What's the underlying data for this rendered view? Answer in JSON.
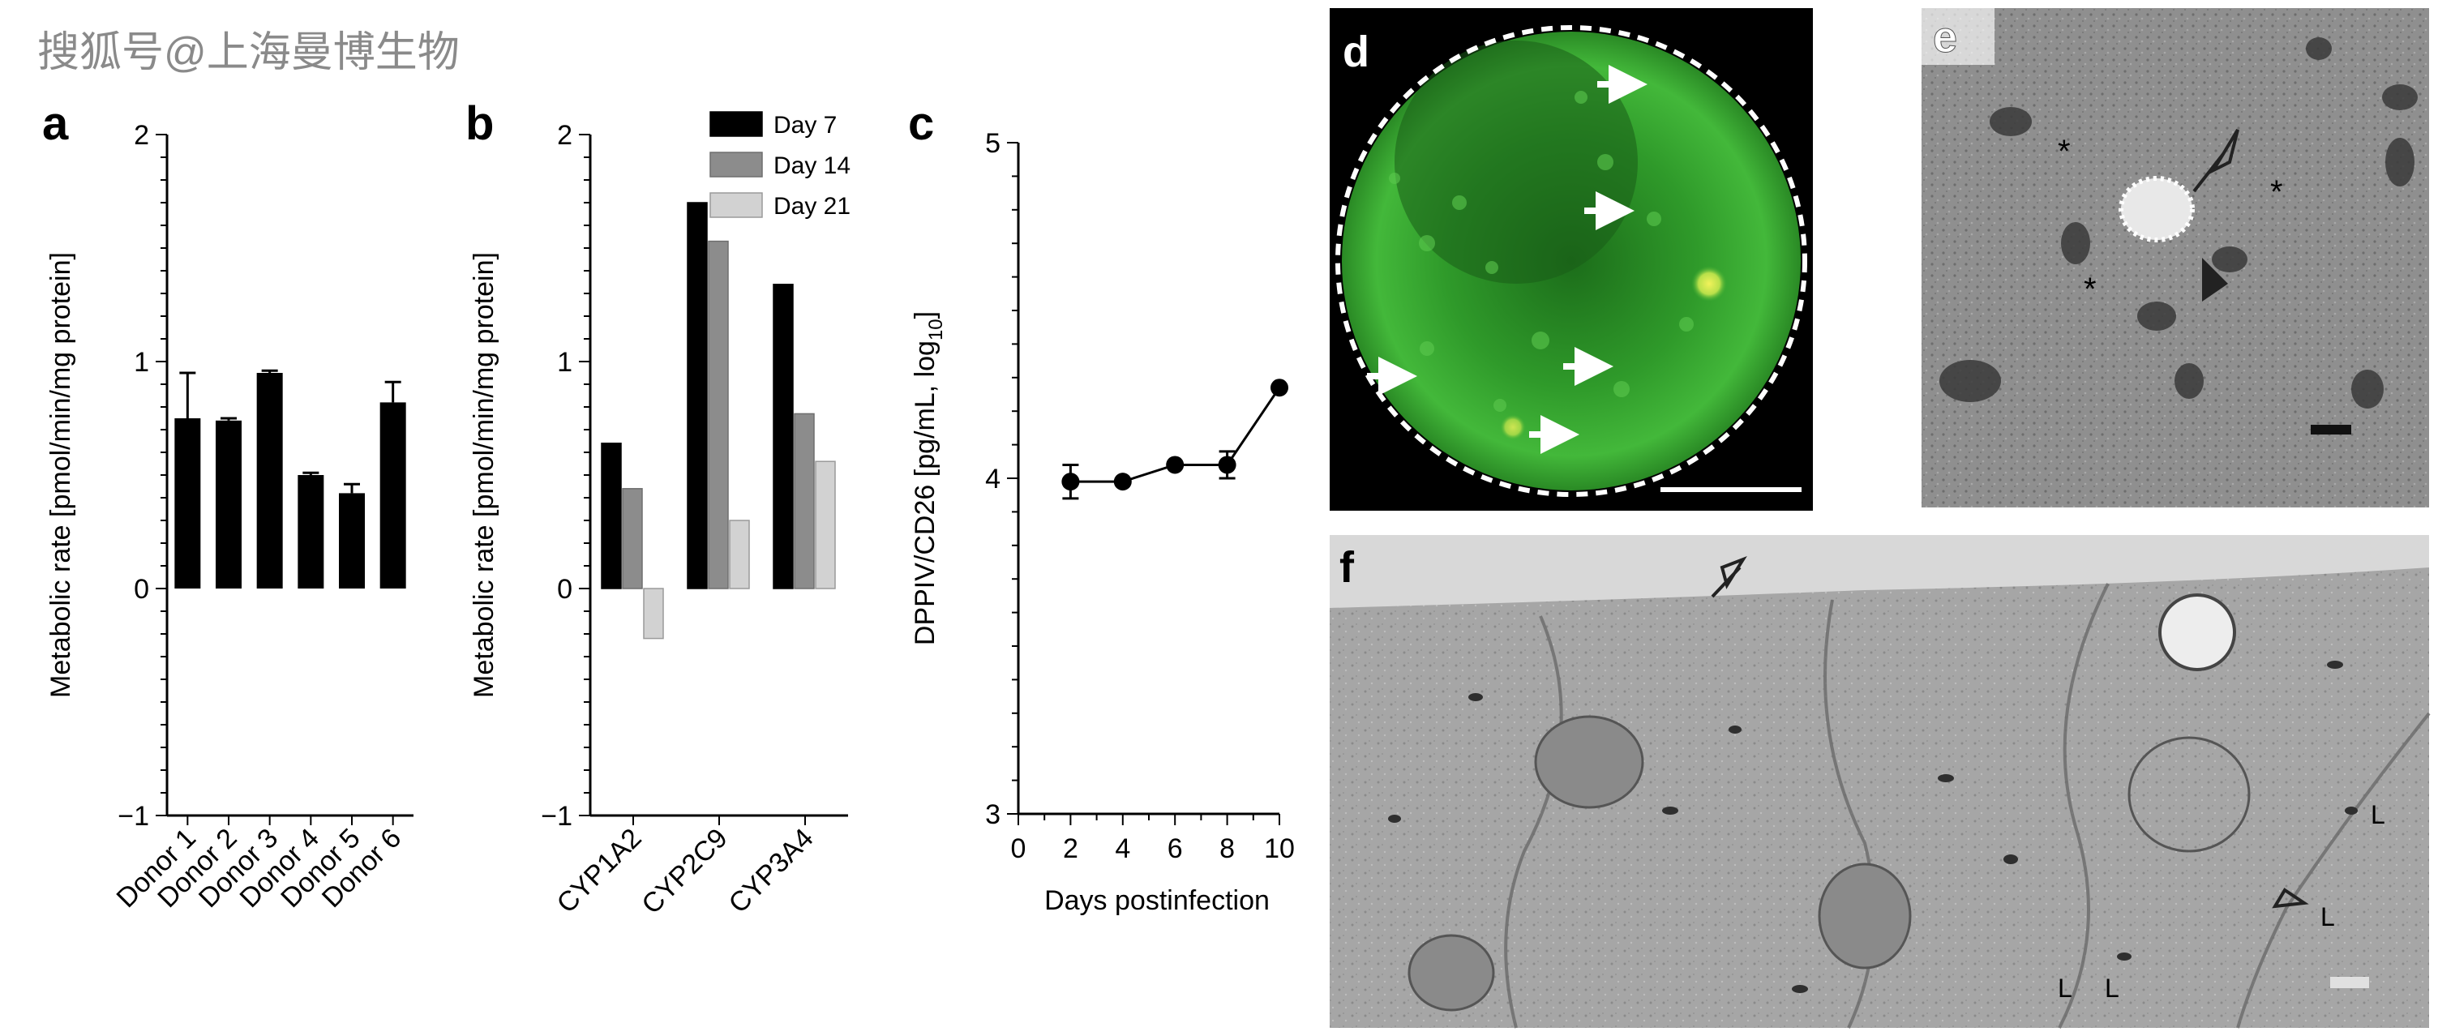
{
  "watermark": "搜狐号@上海曼博生物",
  "colors": {
    "day7": "#000000",
    "day14": "#8c8c8c",
    "day21": "#d2d2d2",
    "fluor_green": "#3fae35"
  },
  "panels": {
    "a": {
      "letter": "a"
    },
    "b": {
      "letter": "b"
    },
    "c": {
      "letter": "c"
    },
    "d": {
      "letter": "d"
    },
    "e": {
      "letter": "e"
    },
    "f": {
      "letter": "f"
    }
  },
  "micrographs": {
    "e_labels": [
      "*",
      "*",
      "*"
    ],
    "f_labels": [
      "L",
      "L",
      "L",
      "L"
    ]
  },
  "chart_data": [
    {
      "panel": "a",
      "type": "bar",
      "ylabel": "Metabolic rate [pmol/min/mg protein]",
      "ylim": [
        -1,
        2
      ],
      "yticks": [
        -1,
        0,
        1,
        2
      ],
      "categories": [
        "Donor 1",
        "Donor 2",
        "Donor 3",
        "Donor 4",
        "Donor 5",
        "Donor 6"
      ],
      "values": [
        0.75,
        0.74,
        0.95,
        0.5,
        0.42,
        0.82
      ],
      "errors": [
        0.2,
        0.01,
        0.01,
        0.01,
        0.04,
        0.09
      ]
    },
    {
      "panel": "b",
      "type": "bar",
      "ylabel": "Metabolic rate [pmol/min/mg protein]",
      "ylim": [
        -1,
        2
      ],
      "yticks": [
        -1,
        0,
        1,
        2
      ],
      "categories": [
        "CYP1A2",
        "CYP2C9",
        "CYP3A4"
      ],
      "series": [
        {
          "name": "Day 7",
          "values": [
            0.64,
            1.7,
            1.34
          ]
        },
        {
          "name": "Day 14",
          "values": [
            0.44,
            1.53,
            0.77
          ]
        },
        {
          "name": "Day 21",
          "values": [
            -0.22,
            0.3,
            0.56
          ]
        }
      ],
      "legend": "top-right"
    },
    {
      "panel": "c",
      "type": "line",
      "xlabel": "Days postinfection",
      "ylabel_main": "DPPIV/CD26 [pg/mL, log",
      "ylabel_sub": "10",
      "ylabel_end": "]",
      "xlim": [
        0,
        10
      ],
      "ylim": [
        3,
        5
      ],
      "xticks": [
        0,
        2,
        4,
        6,
        8,
        10
      ],
      "yticks": [
        3,
        4,
        5
      ],
      "x": [
        2,
        4,
        6,
        8,
        10
      ],
      "y": [
        3.99,
        3.99,
        4.04,
        4.04,
        4.27
      ],
      "errors": [
        0.05,
        0.0,
        0.0,
        0.04,
        0.0
      ]
    }
  ]
}
